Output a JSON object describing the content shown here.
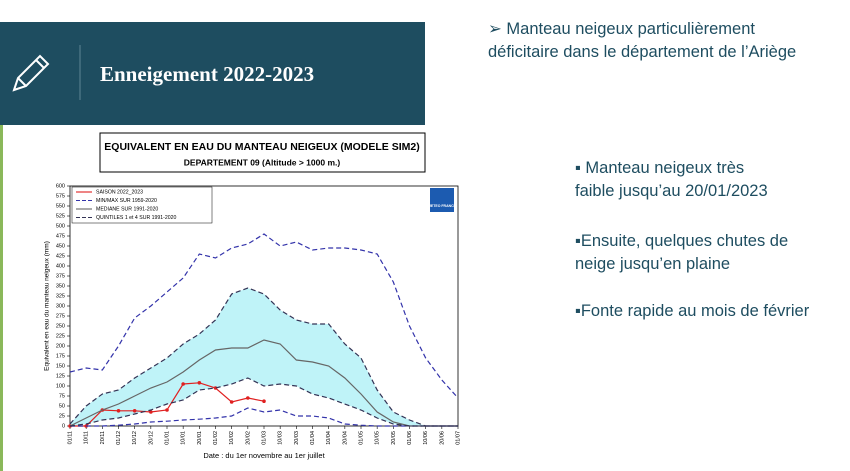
{
  "slide_title": "Enneigement  2022-2023",
  "main_point": "➢  Manteau neigeux particulièrement déficitaire dans le département de l’Ariège",
  "bullets": [
    "▪ Manteau neigeux très faible jusqu’au 20/01/2023",
    "▪Ensuite, quelques chutes de neige jusqu’en plaine",
    "▪Fonte rapide au mois de février"
  ],
  "chart_data": {
    "type": "line",
    "title": "EQUIVALENT EN EAU DU MANTEAU NEIGEUX (MODELE SIM2)",
    "subtitle": "DEPARTEMENT 09  (Altitude > 1000 m.)",
    "logo": "METEO FRANCE",
    "ylabel": "Equivalent en eau du manteau neigeux (mm)",
    "xlabel": "Date : du 1er novembre au 1er juillet",
    "categories": [
      "01/11",
      "10/11",
      "20/11",
      "01/12",
      "10/12",
      "20/12",
      "01/01",
      "10/01",
      "20/01",
      "01/02",
      "10/02",
      "20/02",
      "01/03",
      "10/03",
      "20/03",
      "01/04",
      "10/04",
      "20/04",
      "01/05",
      "10/05",
      "20/05",
      "01/06",
      "10/06",
      "20/06",
      "01/07"
    ],
    "ylim": [
      0,
      600
    ],
    "yticks": [
      0,
      25,
      50,
      75,
      100,
      125,
      150,
      175,
      200,
      225,
      250,
      275,
      300,
      325,
      350,
      375,
      400,
      425,
      450,
      475,
      500,
      525,
      550,
      575,
      600
    ],
    "series": [
      {
        "name": "SAISON 2022_2023",
        "color": "#e02020",
        "style": "solid",
        "markers": true,
        "values": [
          0,
          0,
          40,
          38,
          38,
          35,
          40,
          105,
          108,
          95,
          60,
          70,
          62,
          null,
          null,
          null,
          null,
          null,
          null,
          null,
          null,
          null,
          null,
          null,
          null
        ]
      },
      {
        "name": "MIN/MAX SUR 1959-2020",
        "color": "#3333aa",
        "style": "dashed",
        "values": [
          135,
          145,
          140,
          200,
          270,
          300,
          335,
          370,
          430,
          420,
          445,
          455,
          480,
          450,
          460,
          440,
          445,
          445,
          440,
          430,
          360,
          250,
          170,
          115,
          70
        ],
        "lower": [
          0,
          0,
          0,
          2,
          5,
          10,
          12,
          15,
          17,
          20,
          25,
          45,
          35,
          40,
          25,
          25,
          20,
          5,
          2,
          0,
          0,
          0,
          0,
          0,
          0
        ]
      },
      {
        "name": "MEDIANE SUR 1991-2020",
        "color": "#666666",
        "style": "solid",
        "values": [
          0,
          20,
          40,
          55,
          75,
          95,
          110,
          135,
          165,
          190,
          195,
          195,
          215,
          205,
          165,
          160,
          150,
          120,
          80,
          35,
          10,
          0,
          0,
          0,
          0
        ]
      },
      {
        "name": "QUINTILES 1 et 4 SUR 1991-2020",
        "color": "#333355",
        "style": "dashed",
        "fill": "#bff3f8",
        "values": [
          5,
          50,
          80,
          90,
          120,
          145,
          170,
          205,
          230,
          265,
          330,
          345,
          330,
          290,
          265,
          255,
          255,
          205,
          170,
          90,
          35,
          15,
          0,
          0,
          0
        ],
        "lower": [
          0,
          5,
          15,
          20,
          30,
          40,
          55,
          65,
          90,
          95,
          105,
          120,
          100,
          105,
          100,
          80,
          70,
          55,
          40,
          20,
          5,
          0,
          0,
          0,
          0
        ]
      }
    ]
  }
}
